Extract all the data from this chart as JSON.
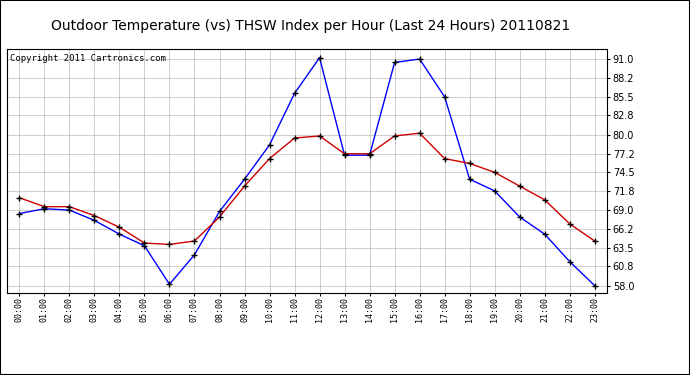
{
  "title": "Outdoor Temperature (vs) THSW Index per Hour (Last 24 Hours) 20110821",
  "copyright": "Copyright 2011 Cartronics.com",
  "hours": [
    "00:00",
    "01:00",
    "02:00",
    "03:00",
    "04:00",
    "05:00",
    "06:00",
    "07:00",
    "08:00",
    "09:00",
    "10:00",
    "11:00",
    "12:00",
    "13:00",
    "14:00",
    "15:00",
    "16:00",
    "17:00",
    "18:00",
    "19:00",
    "20:00",
    "21:00",
    "22:00",
    "23:00"
  ],
  "thsw": [
    68.5,
    69.2,
    69.0,
    67.5,
    65.5,
    63.8,
    58.2,
    62.5,
    68.8,
    73.5,
    78.5,
    86.0,
    91.2,
    77.0,
    77.0,
    90.5,
    91.0,
    85.5,
    73.5,
    71.8,
    68.0,
    65.5,
    61.5,
    58.0
  ],
  "temp": [
    70.8,
    69.5,
    69.5,
    68.2,
    66.5,
    64.2,
    64.0,
    64.5,
    68.0,
    72.5,
    76.5,
    79.5,
    79.8,
    77.2,
    77.2,
    79.8,
    80.2,
    76.5,
    75.8,
    74.5,
    72.5,
    70.5,
    67.0,
    64.5
  ],
  "ylim_min": 57.0,
  "ylim_max": 92.5,
  "yticks": [
    58.0,
    60.8,
    63.5,
    66.2,
    69.0,
    71.8,
    74.5,
    77.2,
    80.0,
    82.8,
    85.5,
    88.2,
    91.0
  ],
  "thsw_color": "#0000ff",
  "temp_color": "#cc0000",
  "grid_color": "#bbbbbb",
  "title_fontsize": 10,
  "copyright_fontsize": 6.5
}
